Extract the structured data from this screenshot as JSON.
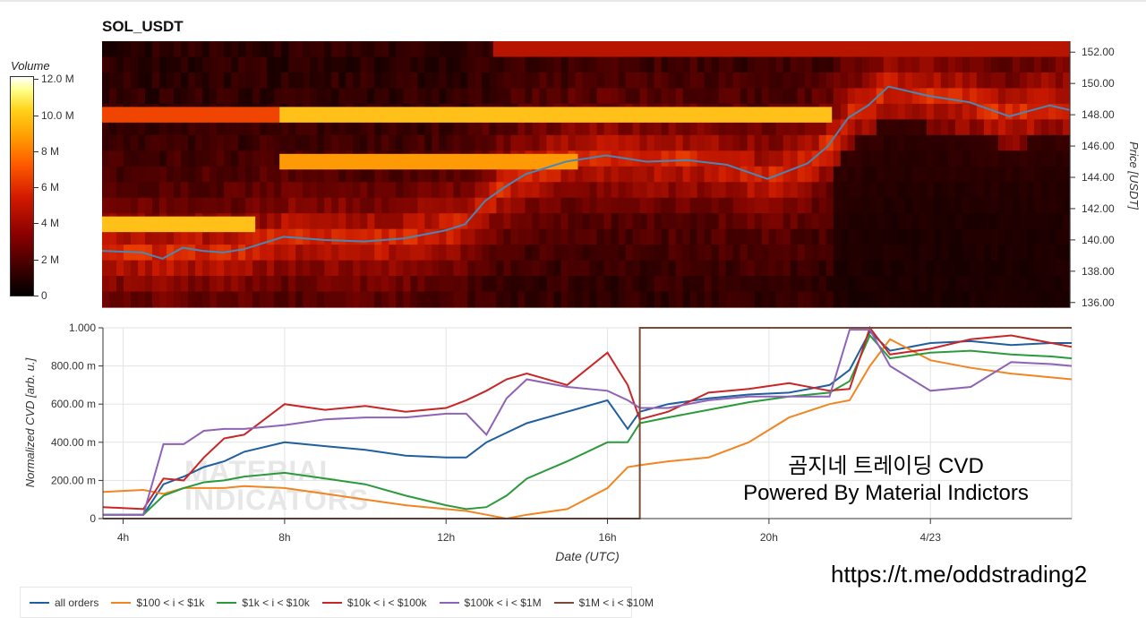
{
  "heatmap": {
    "title": "SOL_USDT",
    "colorbar": {
      "label": "Volume",
      "ticks": [
        "12.0 M",
        "10.0 M",
        "8 M",
        "6 M",
        "4 M",
        "2 M",
        "0"
      ]
    },
    "y_axis": {
      "label": "Price [USDT]",
      "ticks": [
        "152.00",
        "150.00",
        "148.00",
        "146.00",
        "144.00",
        "142.00",
        "140.00",
        "138.00",
        "136.00"
      ],
      "range": [
        135.7,
        152.7
      ]
    },
    "x_range_hours": [
      3.5,
      27.5
    ]
  },
  "chart_data": [
    {
      "type": "heatmap",
      "title": "SOL_USDT",
      "ylabel": "Price [USDT]",
      "ylim": [
        135.7,
        152.7
      ],
      "colorbar": {
        "label": "Volume",
        "range": [
          0,
          12000000
        ]
      },
      "price_line": {
        "x_hours": [
          3.5,
          4.5,
          5.0,
          5.5,
          6.0,
          6.5,
          7.0,
          8.0,
          9.0,
          10.0,
          11.0,
          12.0,
          12.5,
          13.0,
          13.5,
          14.0,
          15.0,
          16.0,
          17.0,
          18.0,
          19.0,
          20.0,
          21.0,
          21.5,
          22.0,
          22.5,
          23.0,
          24.0,
          25.0,
          26.0,
          27.0,
          27.5
        ],
        "price": [
          139.3,
          139.2,
          138.8,
          139.5,
          139.3,
          139.2,
          139.4,
          140.2,
          140.0,
          139.9,
          140.1,
          140.6,
          141.0,
          142.5,
          143.4,
          144.2,
          145.0,
          145.4,
          145.0,
          145.1,
          144.8,
          143.9,
          144.9,
          146.0,
          147.8,
          148.6,
          149.8,
          149.2,
          148.8,
          147.9,
          148.6,
          148.3
        ]
      },
      "bands": [
        {
          "price": 148.0,
          "from_hours": 3.5,
          "to_hours": 7.9,
          "volume_m": 7
        },
        {
          "price": 148.0,
          "from_hours": 7.9,
          "to_hours": 21.6,
          "volume_m": 10
        },
        {
          "price": 145.0,
          "from_hours": 7.9,
          "to_hours": 15.3,
          "volume_m": 9
        },
        {
          "price": 141.0,
          "from_hours": 3.5,
          "to_hours": 7.3,
          "volume_m": 10
        },
        {
          "price": 152.2,
          "from_hours": 13.2,
          "to_hours": 27.5,
          "volume_m": 5
        }
      ]
    },
    {
      "type": "line",
      "xlabel": "Date (UTC)",
      "ylabel": "Normalized CVD [arb. u.]",
      "x_ticks": [
        "4h",
        "8h",
        "12h",
        "16h",
        "20h",
        "4/23"
      ],
      "y_ticks": [
        "0",
        "200.00 m",
        "400.00 m",
        "600.00 m",
        "800.00 m",
        "1.000"
      ],
      "xlim": [
        3.5,
        27.5
      ],
      "ylim": [
        0,
        1.0
      ],
      "x_hours": [
        3.5,
        4.5,
        5.0,
        5.5,
        6.0,
        6.5,
        7.0,
        8.0,
        9.0,
        10.0,
        11.0,
        12.0,
        12.5,
        13.0,
        13.5,
        14.0,
        15.0,
        16.0,
        16.5,
        16.8,
        17.5,
        18.5,
        19.5,
        20.5,
        21.5,
        22.0,
        22.5,
        23.0,
        24.0,
        25.0,
        26.0,
        27.0,
        27.5
      ],
      "series": [
        {
          "name": "all orders",
          "color": "#1f5f9e",
          "values": [
            0.02,
            0.02,
            0.18,
            0.22,
            0.27,
            0.3,
            0.35,
            0.4,
            0.38,
            0.36,
            0.33,
            0.32,
            0.32,
            0.4,
            0.45,
            0.5,
            0.56,
            0.62,
            0.47,
            0.56,
            0.6,
            0.63,
            0.65,
            0.66,
            0.7,
            0.78,
            0.98,
            0.88,
            0.92,
            0.93,
            0.91,
            0.92,
            0.92
          ]
        },
        {
          "name": "$100 < i < $1k",
          "color": "#f28522",
          "values": [
            0.14,
            0.15,
            0.13,
            0.16,
            0.16,
            0.16,
            0.17,
            0.16,
            0.13,
            0.1,
            0.07,
            0.05,
            0.04,
            0.02,
            0.0,
            0.02,
            0.05,
            0.16,
            0.27,
            0.28,
            0.3,
            0.32,
            0.4,
            0.53,
            0.6,
            0.62,
            0.8,
            0.94,
            0.83,
            0.79,
            0.76,
            0.74,
            0.73
          ]
        },
        {
          "name": "$1k < i < $10k",
          "color": "#2a9a3c",
          "values": [
            0.02,
            0.02,
            0.12,
            0.16,
            0.19,
            0.2,
            0.22,
            0.24,
            0.21,
            0.18,
            0.12,
            0.07,
            0.05,
            0.06,
            0.12,
            0.21,
            0.3,
            0.4,
            0.4,
            0.5,
            0.53,
            0.57,
            0.61,
            0.64,
            0.66,
            0.72,
            0.96,
            0.84,
            0.87,
            0.88,
            0.86,
            0.85,
            0.84
          ]
        },
        {
          "name": "$10k < i < $100k",
          "color": "#c82626",
          "values": [
            0.06,
            0.05,
            0.21,
            0.2,
            0.32,
            0.42,
            0.44,
            0.6,
            0.57,
            0.59,
            0.56,
            0.58,
            0.62,
            0.67,
            0.73,
            0.76,
            0.7,
            0.87,
            0.7,
            0.52,
            0.56,
            0.66,
            0.68,
            0.71,
            0.67,
            0.68,
            1.0,
            0.86,
            0.89,
            0.94,
            0.96,
            0.92,
            0.9
          ]
        },
        {
          "name": "$100k < i < $1M",
          "color": "#8e63b6",
          "values": [
            0.02,
            0.02,
            0.39,
            0.39,
            0.46,
            0.47,
            0.47,
            0.49,
            0.52,
            0.53,
            0.53,
            0.55,
            0.55,
            0.44,
            0.63,
            0.73,
            0.69,
            0.67,
            0.62,
            0.58,
            0.58,
            0.62,
            0.64,
            0.64,
            0.64,
            0.99,
            0.99,
            0.8,
            0.67,
            0.69,
            0.82,
            0.81,
            0.8
          ]
        },
        {
          "name": "$1M < i < $10M",
          "color": "#7b4a34",
          "values": [
            0.0,
            0.0,
            0.0,
            0.0,
            0.0,
            0.0,
            0.0,
            0.0,
            0.0,
            0.0,
            0.0,
            0.0,
            0.0,
            0.0,
            0.0,
            0.0,
            0.0,
            0.0,
            0.0,
            1.0,
            1.0,
            1.0,
            1.0,
            1.0,
            1.0,
            1.0,
            1.0,
            1.0,
            1.0,
            1.0,
            1.0,
            1.0,
            1.0
          ]
        }
      ],
      "legend_position": "bottom-left"
    }
  ],
  "overlay": {
    "line1": "곰지네 트레이딩 CVD",
    "line2": "Powered By Material Indictors",
    "url": "https://t.me/oddstrading2",
    "watermark_line1": "MATERIAL",
    "watermark_line2": "INDICATORS"
  }
}
